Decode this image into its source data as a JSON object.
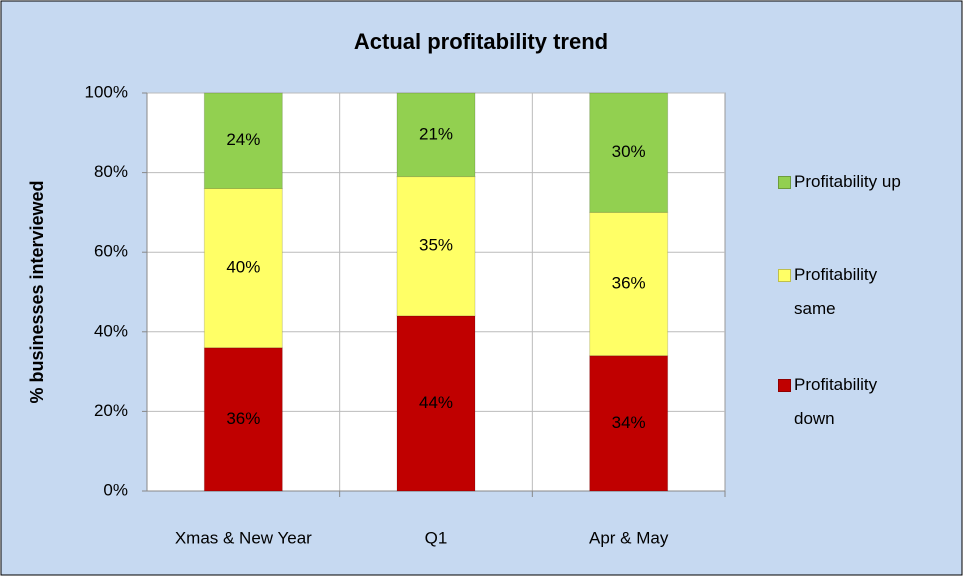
{
  "chart_data": {
    "type": "stacked_bar",
    "title": "Actual profitability trend",
    "y_label": "% businesses interviewed",
    "categories": [
      "Xmas & New Year",
      "Q1",
      "Apr & May"
    ],
    "series": [
      {
        "name": "Profitability down",
        "color": "#c00000",
        "values": [
          36,
          44,
          34
        ],
        "value_labels": [
          "36%",
          "44%",
          "34%"
        ]
      },
      {
        "name": "Profitability same",
        "color": "#ffff66",
        "values": [
          40,
          35,
          36
        ],
        "value_labels": [
          "40%",
          "35%",
          "36%"
        ]
      },
      {
        "name": "Profitability up",
        "color": "#92d050",
        "values": [
          24,
          21,
          30
        ],
        "value_labels": [
          "24%",
          "21%",
          "30%"
        ]
      }
    ],
    "ylim": [
      0,
      100
    ],
    "yticks": [
      {
        "value": 0,
        "label": "0%"
      },
      {
        "value": 20,
        "label": "20%"
      },
      {
        "value": 40,
        "label": "40%"
      },
      {
        "value": 60,
        "label": "60%"
      },
      {
        "value": 80,
        "label": "80%"
      },
      {
        "value": 100,
        "label": "100%"
      }
    ],
    "grid": true,
    "legend": "right"
  }
}
